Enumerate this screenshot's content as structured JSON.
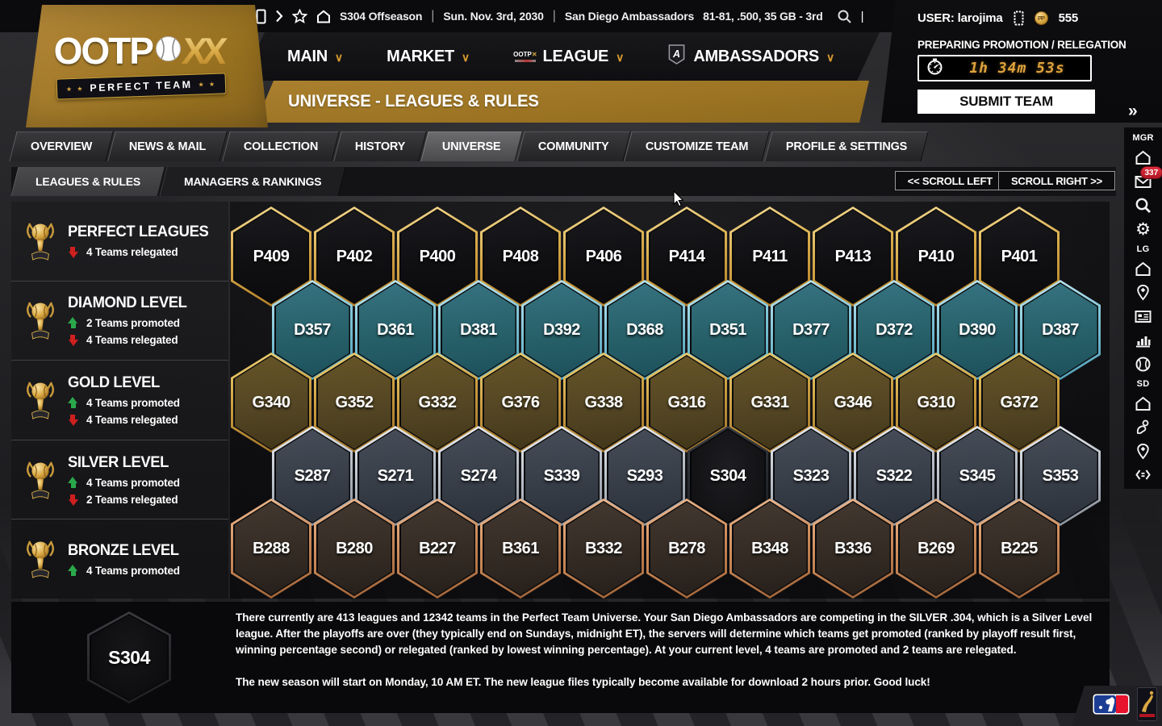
{
  "logo": {
    "brand": "OOTP",
    "xx": "XX",
    "banner": "PERFECT TEAM",
    "banner_stars": "★ ★"
  },
  "titlebar": {
    "season": "S304 Offseason",
    "date": "Sun. Nov. 3rd, 2030",
    "team": "San Diego Ambassadors",
    "record": "81-81, .500, 35 GB - 3rd",
    "separator": "|",
    "caret": "|"
  },
  "user": {
    "label": "USER: larojima",
    "points": "555"
  },
  "promotion": {
    "status": "PREPARING PROMOTION / RELEGATION",
    "timer": "1h 34m 53s",
    "submit_label": "SUBMIT TEAM"
  },
  "nav": {
    "items": [
      "MAIN",
      "MARKET",
      "LEAGUE",
      "AMBASSADORS"
    ],
    "chevron": "∨",
    "badge_letter": "A",
    "mini_logo_text": "OOTP"
  },
  "page_title": "UNIVERSE - LEAGUES & RULES",
  "tabs": {
    "items": [
      "OVERVIEW",
      "NEWS & MAIL",
      "COLLECTION",
      "HISTORY",
      "UNIVERSE",
      "COMMUNITY",
      "CUSTOMIZE TEAM",
      "PROFILE & SETTINGS"
    ],
    "active": "UNIVERSE"
  },
  "subtabs": {
    "items": [
      "LEAGUES & RULES",
      "MANAGERS & RANKINGS"
    ],
    "active": "LEAGUES & RULES",
    "scroll_left": "<< SCROLL LEFT",
    "scroll_right": "SCROLL RIGHT >>"
  },
  "levels": [
    {
      "name": "PERFECT LEAGUES",
      "promoted": null,
      "relegated": "4 Teams relegated"
    },
    {
      "name": "DIAMOND LEVEL",
      "promoted": "2 Teams promoted",
      "relegated": "4 Teams relegated"
    },
    {
      "name": "GOLD LEVEL",
      "promoted": "4 Teams promoted",
      "relegated": "4 Teams relegated"
    },
    {
      "name": "SILVER LEVEL",
      "promoted": "4 Teams promoted",
      "relegated": "2 Teams relegated"
    },
    {
      "name": "BRONZE LEVEL",
      "promoted": "4 Teams promoted",
      "relegated": null
    }
  ],
  "selected_league": "S304",
  "hex_rows": [
    {
      "level": "perfect",
      "offset": false,
      "leagues": [
        "P409",
        "P402",
        "P400",
        "P408",
        "P406",
        "P414",
        "P411",
        "P413",
        "P410",
        "P401"
      ]
    },
    {
      "level": "diamond",
      "offset": true,
      "leagues": [
        "D357",
        "D361",
        "D381",
        "D392",
        "D368",
        "D351",
        "D377",
        "D372",
        "D390",
        "D387"
      ]
    },
    {
      "level": "gold",
      "offset": false,
      "leagues": [
        "G340",
        "G352",
        "G332",
        "G376",
        "G338",
        "G316",
        "G331",
        "G346",
        "G310",
        "G372"
      ]
    },
    {
      "level": "silver",
      "offset": true,
      "leagues": [
        "S287",
        "S271",
        "S274",
        "S339",
        "S293",
        "S304",
        "S323",
        "S322",
        "S345",
        "S353"
      ]
    },
    {
      "level": "bronze",
      "offset": false,
      "leagues": [
        "B288",
        "B280",
        "B227",
        "B361",
        "B332",
        "B278",
        "B348",
        "B336",
        "B269",
        "B225"
      ]
    }
  ],
  "sidebar_right": {
    "expand": "»",
    "mail_badge": "337",
    "groups": [
      {
        "label": "MGR",
        "icons": [
          "home",
          "mail",
          "search",
          "gear"
        ]
      },
      {
        "label": "LG",
        "icons": [
          "home",
          "pin",
          "card",
          "chart",
          "baseball"
        ]
      },
      {
        "label": "SD",
        "icons": [
          "home",
          "handball",
          "pin",
          "code"
        ]
      }
    ]
  },
  "info_panel": {
    "hex_label": "S304",
    "paragraph1": "There currently are 413 leagues and 12342 teams in the Perfect Team Universe. Your San Diego Ambassadors are competing in the SILVER .304, which is a Silver Level league. After the playoffs are over (they typically end on Sundays, midnight ET), the servers will determine which teams get promoted (ranked by playoff result first, winning percentage second) or relegated (ranked by lowest winning percentage). At your current level, 4 teams are promoted and 2 teams are relegated.",
    "paragraph2": "The new season will start on Monday, 10 AM ET. The new league files typically become available for download 2 hours prior. Good luck!"
  },
  "colors": {
    "accent_gold": "#9b7322",
    "timer_digits": "#dfa33c",
    "promoted_green": "#2ba84a",
    "relegated_red": "#cf1f1f",
    "badge_red": "#c41f2d",
    "perfect_border": "#d8ab4a",
    "diamond_border": "#7fc5d8",
    "gold_border": "#ca9d3f",
    "silver_border": "#b9c0c9",
    "bronze_border": "#ce8d5c"
  }
}
